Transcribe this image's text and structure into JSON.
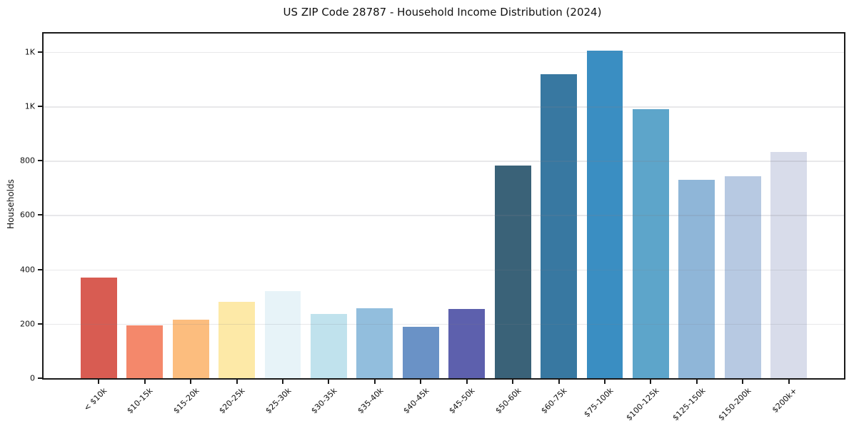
{
  "chart_data": {
    "type": "bar",
    "title": "US ZIP Code 28787 - Household Income Distribution (2024)",
    "xlabel": "",
    "ylabel": "Households",
    "categories": [
      "< $10k",
      "$10-15k",
      "$15-20k",
      "$20-25k",
      "$25-30k",
      "$30-35k",
      "$35-40k",
      "$40-45k",
      "$45-50k",
      "$50-60k",
      "$60-75k",
      "$75-100k",
      "$100-125k",
      "$125-150k",
      "$150-200k",
      "$200k+"
    ],
    "values": [
      370,
      195,
      216,
      281,
      321,
      236,
      258,
      189,
      255,
      783,
      1118,
      1205,
      990,
      731,
      743,
      831
    ],
    "bar_colors": [
      "#d85c52",
      "#f4886b",
      "#fcbd7e",
      "#fde9a7",
      "#e7f3f8",
      "#c0e2ed",
      "#92bedd",
      "#6a92c6",
      "#5d60ad",
      "#3a6278",
      "#3878a1",
      "#3a8ec2",
      "#5da5ca",
      "#8fb6d8",
      "#b7c9e2",
      "#d8dcea"
    ],
    "ylim": [
      0,
      1268
    ],
    "yticks": [
      {
        "value": 0,
        "label": "0"
      },
      {
        "value": 200,
        "label": "200"
      },
      {
        "value": 400,
        "label": "400"
      },
      {
        "value": 600,
        "label": "600"
      },
      {
        "value": 800,
        "label": "800"
      },
      {
        "value": 1000,
        "label": "1K"
      },
      {
        "value": 1200,
        "label": "1K"
      }
    ],
    "grid": "horizontal",
    "legend_position": "none",
    "background_color": "#ffffff",
    "axis_color": "#1a1a1a",
    "grid_color": "#e7e7e7"
  }
}
